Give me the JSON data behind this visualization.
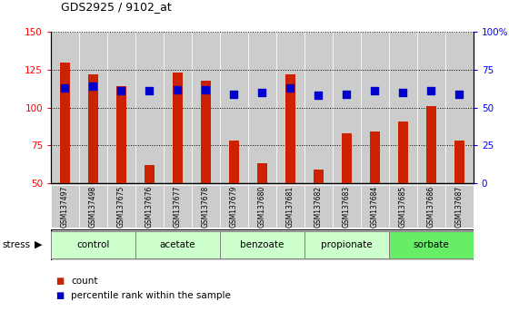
{
  "title": "GDS2925 / 9102_at",
  "samples": [
    "GSM137497",
    "GSM137498",
    "GSM137675",
    "GSM137676",
    "GSM137677",
    "GSM137678",
    "GSM137679",
    "GSM137680",
    "GSM137681",
    "GSM137682",
    "GSM137683",
    "GSM137684",
    "GSM137685",
    "GSM137686",
    "GSM137687"
  ],
  "counts": [
    130,
    122,
    114,
    62,
    123,
    118,
    78,
    63,
    122,
    59,
    83,
    84,
    91,
    101,
    78
  ],
  "percentiles": [
    113,
    114,
    111,
    111,
    112,
    112,
    109,
    110,
    113,
    108,
    109,
    111,
    110,
    111,
    109
  ],
  "groups": [
    {
      "label": "control",
      "indices": [
        0,
        1,
        2
      ],
      "color": "#ccffcc"
    },
    {
      "label": "acetate",
      "indices": [
        3,
        4,
        5
      ],
      "color": "#ccffcc"
    },
    {
      "label": "benzoate",
      "indices": [
        6,
        7,
        8
      ],
      "color": "#ccffcc"
    },
    {
      "label": "propionate",
      "indices": [
        9,
        10,
        11
      ],
      "color": "#ccffcc"
    },
    {
      "label": "sorbate",
      "indices": [
        12,
        13,
        14
      ],
      "color": "#66ee66"
    }
  ],
  "ylim_left": [
    50,
    150
  ],
  "ylim_right": [
    0,
    100
  ],
  "bar_color": "#cc2200",
  "dot_color": "#0000cc",
  "background_color": "#ffffff",
  "grid_color": "#000000",
  "cell_bg": "#cccccc",
  "yticks_left": [
    50,
    75,
    100,
    125,
    150
  ],
  "yticks_right": [
    0,
    25,
    50,
    75,
    100
  ],
  "ytick_labels_left": [
    "50",
    "75",
    "100",
    "125",
    "150"
  ],
  "ytick_labels_right": [
    "0",
    "25",
    "50",
    "75",
    "100%"
  ]
}
